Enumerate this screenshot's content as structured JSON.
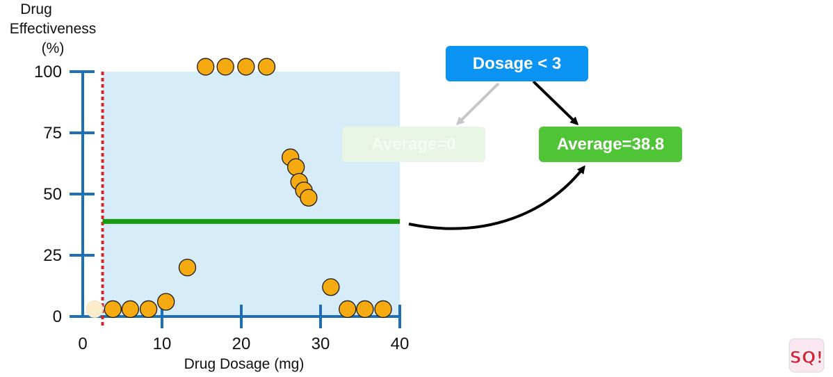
{
  "chart_data": {
    "type": "scatter",
    "ylabel": [
      "Drug",
      "Effectiveness",
      "(%)"
    ],
    "xlabel": "Drug Dosage (mg)",
    "xlim": [
      0,
      40
    ],
    "ylim": [
      0,
      100
    ],
    "xticks": [
      0,
      10,
      20,
      30,
      40
    ],
    "yticks": [
      0,
      25,
      50,
      75,
      100
    ],
    "colors": {
      "point": "#f4aa10",
      "point_faded": "#fbeccc",
      "region": "#d6ecf9",
      "axis": "#1f6fb8",
      "average_line": "#1a9a12",
      "threshold_line": "#d9232a"
    },
    "threshold_x": 2.5,
    "region": {
      "x_from": 2.5,
      "x_to": 40,
      "y_from": 0,
      "y_to": 100
    },
    "average_line": {
      "y": 38.8,
      "x_from": 2.5,
      "x_to": 40
    },
    "faded_points": [
      {
        "x": 1.5,
        "y": 3
      }
    ],
    "points": [
      {
        "x": 3.8,
        "y": 3
      },
      {
        "x": 6,
        "y": 3
      },
      {
        "x": 8.3,
        "y": 3
      },
      {
        "x": 10.5,
        "y": 6
      },
      {
        "x": 13.2,
        "y": 20
      },
      {
        "x": 15.5,
        "y": 102
      },
      {
        "x": 18,
        "y": 102
      },
      {
        "x": 20.6,
        "y": 102
      },
      {
        "x": 23.2,
        "y": 102
      },
      {
        "x": 26.2,
        "y": 65
      },
      {
        "x": 26.9,
        "y": 61
      },
      {
        "x": 27.3,
        "y": 55
      },
      {
        "x": 27.9,
        "y": 51.5
      },
      {
        "x": 28.5,
        "y": 48.5
      },
      {
        "x": 31.3,
        "y": 12
      },
      {
        "x": 33.4,
        "y": 3
      },
      {
        "x": 35.6,
        "y": 3
      },
      {
        "x": 37.9,
        "y": 3
      }
    ]
  },
  "tree": {
    "root_label": "Dosage < 3",
    "left_label": "Average=0",
    "right_label": "Average=38.8"
  },
  "logo": {
    "text": "SQ!"
  }
}
